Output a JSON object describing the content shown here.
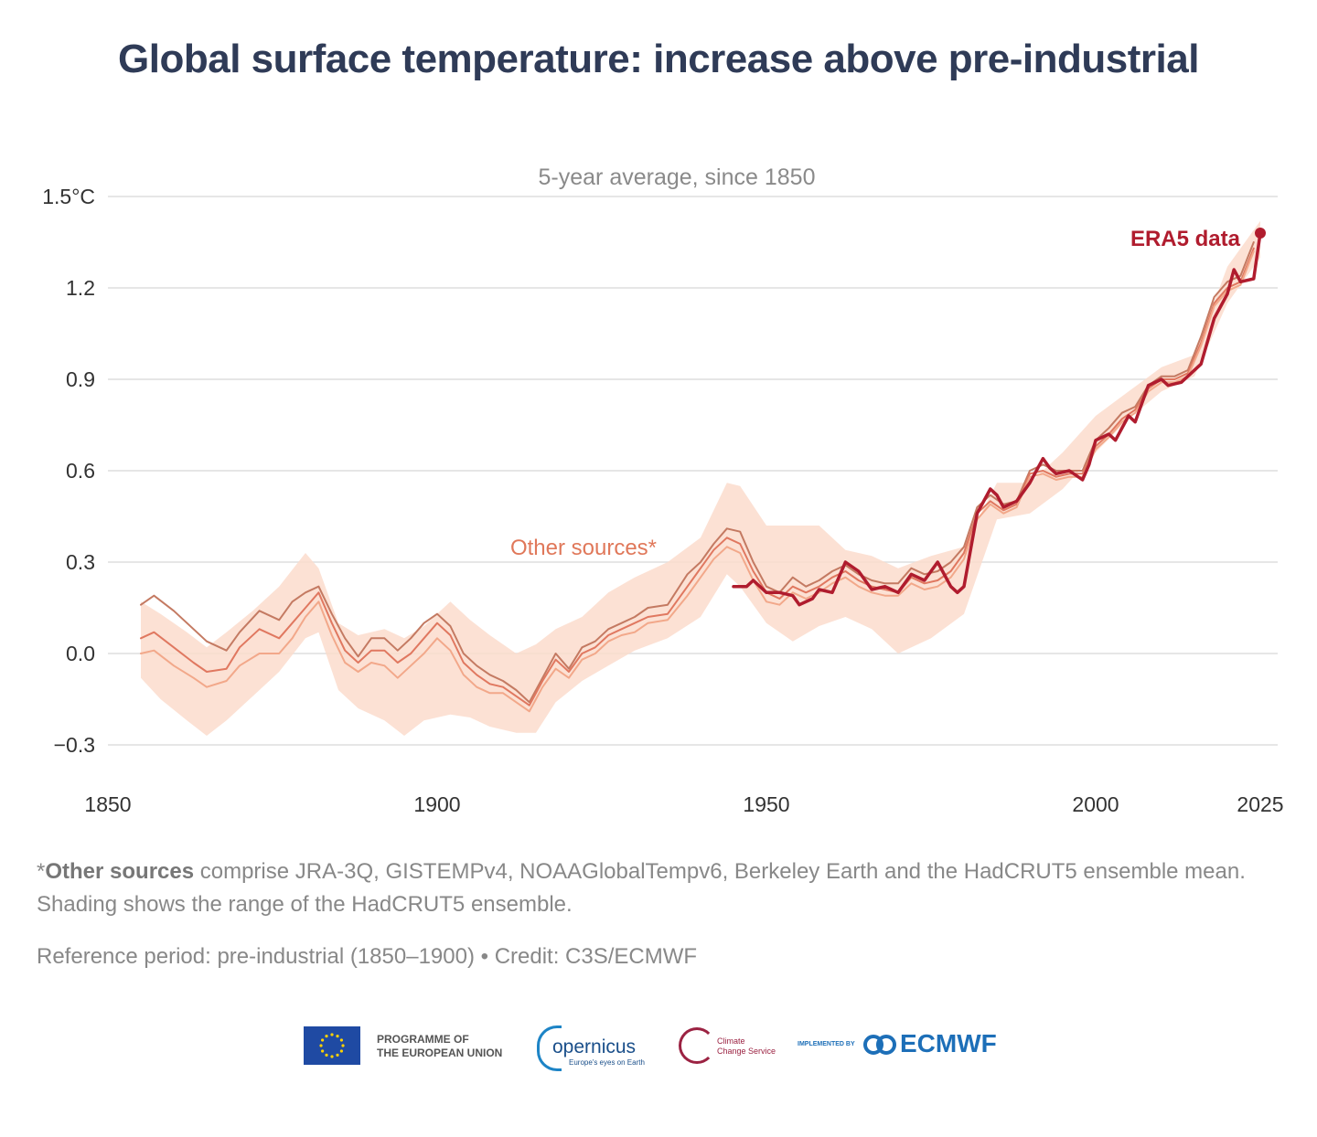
{
  "title": "Global surface temperature: increase above pre-industrial",
  "chart_data": {
    "type": "line",
    "subtitle": "5-year average, since 1850",
    "x_ticks": [
      "1850",
      "1900",
      "1950",
      "2000",
      "2025"
    ],
    "y_ticks": [
      "1.5°C",
      "1.2",
      "0.9",
      "0.6",
      "0.3",
      "0.0",
      "−0.3"
    ],
    "xlim": [
      1850,
      2027
    ],
    "ylim": [
      -0.38,
      1.55
    ],
    "grid": true,
    "colors": {
      "era5": "#b01c2e",
      "other_1": "#c47a62",
      "other_2": "#e07860",
      "other_3": "#f2a88a",
      "band": "#fbdccd",
      "label_other": "#e0785a"
    },
    "annotations": {
      "era5_label": "ERA5 data",
      "other_label": "Other sources*"
    },
    "band": {
      "x": [
        1855,
        1858,
        1862,
        1865,
        1868,
        1872,
        1876,
        1880,
        1882,
        1885,
        1888,
        1892,
        1895,
        1898,
        1902,
        1905,
        1908,
        1912,
        1915,
        1918,
        1922,
        1926,
        1930,
        1935,
        1940,
        1944,
        1946,
        1950,
        1954,
        1958,
        1962,
        1966,
        1970,
        1975,
        1980,
        1985,
        1990,
        1995,
        2000,
        2005,
        2010,
        2015,
        2020,
        2025
      ],
      "low": [
        -0.08,
        -0.15,
        -0.22,
        -0.27,
        -0.22,
        -0.14,
        -0.06,
        0.05,
        0.07,
        -0.12,
        -0.18,
        -0.22,
        -0.27,
        -0.22,
        -0.2,
        -0.21,
        -0.24,
        -0.26,
        -0.26,
        -0.16,
        -0.09,
        -0.04,
        0.01,
        0.05,
        0.12,
        0.26,
        0.22,
        0.1,
        0.04,
        0.09,
        0.12,
        0.08,
        0.0,
        0.05,
        0.13,
        0.44,
        0.46,
        0.54,
        0.66,
        0.77,
        0.86,
        0.91,
        1.15,
        1.3
      ],
      "high": [
        0.17,
        0.13,
        0.07,
        0.02,
        0.07,
        0.14,
        0.22,
        0.33,
        0.28,
        0.1,
        0.06,
        0.08,
        0.05,
        0.09,
        0.17,
        0.11,
        0.06,
        0.0,
        0.03,
        0.08,
        0.12,
        0.2,
        0.25,
        0.3,
        0.38,
        0.56,
        0.55,
        0.42,
        0.42,
        0.42,
        0.34,
        0.32,
        0.28,
        0.32,
        0.35,
        0.56,
        0.56,
        0.66,
        0.78,
        0.86,
        0.94,
        0.98,
        1.27,
        1.42
      ]
    },
    "series": [
      {
        "x": [
          1855,
          1857,
          1860,
          1863,
          1865,
          1868,
          1870,
          1873,
          1876,
          1878,
          1880,
          1882,
          1884,
          1886,
          1888,
          1890,
          1892,
          1894,
          1896,
          1898,
          1900,
          1902,
          1904,
          1906,
          1908,
          1910,
          1912,
          1914,
          1916,
          1918,
          1920,
          1922,
          1924,
          1926,
          1928,
          1930,
          1932,
          1935,
          1938,
          1940,
          1942,
          1944,
          1946,
          1948,
          1950,
          1952,
          1954,
          1956,
          1958,
          1960,
          1962,
          1964,
          1966,
          1968,
          1970,
          1972,
          1974,
          1976,
          1978,
          1980,
          1982,
          1984,
          1986,
          1988,
          1990,
          1992,
          1994,
          1996,
          1998,
          2000,
          2002,
          2004,
          2006,
          2008,
          2010,
          2012,
          2014,
          2016,
          2018,
          2020,
          2022,
          2024
        ],
        "values": [
          0.16,
          0.19,
          0.14,
          0.08,
          0.04,
          0.01,
          0.07,
          0.14,
          0.11,
          0.17,
          0.2,
          0.22,
          0.13,
          0.05,
          -0.01,
          0.05,
          0.05,
          0.01,
          0.05,
          0.1,
          0.13,
          0.09,
          0.0,
          -0.04,
          -0.07,
          -0.09,
          -0.12,
          -0.16,
          -0.08,
          0.0,
          -0.05,
          0.02,
          0.04,
          0.08,
          0.1,
          0.12,
          0.15,
          0.16,
          0.26,
          0.3,
          0.36,
          0.41,
          0.4,
          0.3,
          0.22,
          0.2,
          0.25,
          0.22,
          0.24,
          0.27,
          0.29,
          0.26,
          0.24,
          0.23,
          0.23,
          0.28,
          0.26,
          0.27,
          0.3,
          0.35,
          0.48,
          0.52,
          0.49,
          0.5,
          0.6,
          0.62,
          0.6,
          0.6,
          0.6,
          0.7,
          0.74,
          0.79,
          0.81,
          0.88,
          0.91,
          0.91,
          0.93,
          1.04,
          1.17,
          1.22,
          1.24,
          1.35
        ]
      },
      {
        "x": [
          1855,
          1857,
          1860,
          1863,
          1865,
          1868,
          1870,
          1873,
          1876,
          1878,
          1880,
          1882,
          1884,
          1886,
          1888,
          1890,
          1892,
          1894,
          1896,
          1898,
          1900,
          1902,
          1904,
          1906,
          1908,
          1910,
          1912,
          1914,
          1916,
          1918,
          1920,
          1922,
          1924,
          1926,
          1928,
          1930,
          1932,
          1935,
          1938,
          1940,
          1942,
          1944,
          1946,
          1948,
          1950,
          1952,
          1954,
          1956,
          1958,
          1960,
          1962,
          1964,
          1966,
          1968,
          1970,
          1972,
          1974,
          1976,
          1978,
          1980,
          1982,
          1984,
          1986,
          1988,
          1990,
          1992,
          1994,
          1996,
          1998,
          2000,
          2002,
          2004,
          2006,
          2008,
          2010,
          2012,
          2014,
          2016,
          2018,
          2020,
          2022,
          2024
        ],
        "values": [
          0.05,
          0.07,
          0.02,
          -0.03,
          -0.06,
          -0.05,
          0.02,
          0.08,
          0.05,
          0.1,
          0.15,
          0.2,
          0.1,
          0.01,
          -0.03,
          0.01,
          0.01,
          -0.03,
          0.0,
          0.05,
          0.1,
          0.06,
          -0.03,
          -0.07,
          -0.1,
          -0.11,
          -0.14,
          -0.17,
          -0.09,
          -0.02,
          -0.06,
          0.0,
          0.02,
          0.06,
          0.08,
          0.1,
          0.12,
          0.13,
          0.22,
          0.28,
          0.34,
          0.38,
          0.36,
          0.27,
          0.2,
          0.18,
          0.22,
          0.2,
          0.22,
          0.25,
          0.27,
          0.24,
          0.22,
          0.21,
          0.2,
          0.25,
          0.23,
          0.24,
          0.27,
          0.33,
          0.46,
          0.5,
          0.47,
          0.49,
          0.59,
          0.6,
          0.58,
          0.59,
          0.59,
          0.68,
          0.72,
          0.77,
          0.8,
          0.87,
          0.9,
          0.9,
          0.92,
          1.02,
          1.15,
          1.2,
          1.22,
          1.33
        ]
      },
      {
        "x": [
          1855,
          1857,
          1860,
          1863,
          1865,
          1868,
          1870,
          1873,
          1876,
          1878,
          1880,
          1882,
          1884,
          1886,
          1888,
          1890,
          1892,
          1894,
          1896,
          1898,
          1900,
          1902,
          1904,
          1906,
          1908,
          1910,
          1912,
          1914,
          1916,
          1918,
          1920,
          1922,
          1924,
          1926,
          1928,
          1930,
          1932,
          1935,
          1938,
          1940,
          1942,
          1944,
          1946,
          1948,
          1950,
          1952,
          1954,
          1956,
          1958,
          1960,
          1962,
          1964,
          1966,
          1968,
          1970,
          1972,
          1974,
          1976,
          1978,
          1980,
          1982,
          1984,
          1986,
          1988,
          1990,
          1992,
          1994,
          1996,
          1998,
          2000,
          2002,
          2004,
          2006,
          2008,
          2010,
          2012,
          2014,
          2016,
          2018,
          2020,
          2022,
          2024
        ],
        "values": [
          0.0,
          0.01,
          -0.04,
          -0.08,
          -0.11,
          -0.09,
          -0.04,
          0.0,
          0.0,
          0.05,
          0.12,
          0.17,
          0.06,
          -0.03,
          -0.06,
          -0.03,
          -0.04,
          -0.08,
          -0.04,
          0.0,
          0.05,
          0.01,
          -0.07,
          -0.11,
          -0.13,
          -0.13,
          -0.16,
          -0.19,
          -0.11,
          -0.05,
          -0.08,
          -0.02,
          0.0,
          0.04,
          0.06,
          0.07,
          0.1,
          0.11,
          0.19,
          0.25,
          0.31,
          0.35,
          0.33,
          0.24,
          0.17,
          0.16,
          0.2,
          0.18,
          0.2,
          0.23,
          0.25,
          0.22,
          0.2,
          0.19,
          0.19,
          0.23,
          0.21,
          0.22,
          0.25,
          0.31,
          0.44,
          0.49,
          0.46,
          0.48,
          0.58,
          0.59,
          0.57,
          0.58,
          0.58,
          0.67,
          0.71,
          0.76,
          0.79,
          0.86,
          0.89,
          0.89,
          0.91,
          1.01,
          1.14,
          1.19,
          1.21,
          1.32
        ]
      },
      {
        "x": [
          1945,
          1947,
          1948,
          1950,
          1952,
          1954,
          1955,
          1957,
          1958,
          1960,
          1962,
          1964,
          1966,
          1968,
          1970,
          1972,
          1974,
          1976,
          1978,
          1979,
          1980,
          1982,
          1984,
          1985,
          1986,
          1988,
          1990,
          1992,
          1993,
          1994,
          1996,
          1998,
          1999,
          2000,
          2002,
          2003,
          2005,
          2006,
          2008,
          2010,
          2011,
          2013,
          2014,
          2016,
          2018,
          2019,
          2020,
          2021,
          2022,
          2024,
          2025
        ],
        "values": [
          0.22,
          0.22,
          0.24,
          0.2,
          0.2,
          0.19,
          0.16,
          0.18,
          0.21,
          0.2,
          0.3,
          0.27,
          0.21,
          0.22,
          0.2,
          0.26,
          0.24,
          0.3,
          0.22,
          0.2,
          0.22,
          0.46,
          0.54,
          0.52,
          0.48,
          0.5,
          0.56,
          0.64,
          0.61,
          0.59,
          0.6,
          0.57,
          0.62,
          0.7,
          0.72,
          0.7,
          0.78,
          0.76,
          0.88,
          0.9,
          0.88,
          0.89,
          0.91,
          0.95,
          1.1,
          1.14,
          1.18,
          1.26,
          1.22,
          1.23,
          1.38
        ]
      }
    ]
  },
  "footnote": {
    "asterisk": "*",
    "bold": "Other sources",
    "rest": " comprise JRA-3Q, GISTEMPv4, NOAAGlobalTempv6, Berkeley Earth and the HadCRUT5 ensemble mean. Shading shows the range of the HadCRUT5 ensemble."
  },
  "reference": "Reference period: pre-industrial (1850–1900) • Credit: C3S/ECMWF",
  "logos": {
    "eu_line1": "PROGRAMME OF",
    "eu_line2": "THE EUROPEAN UNION",
    "copernicus": "opernicus",
    "copernicus_tagline": "Europe's eyes on Earth",
    "c3s_line1": "Climate",
    "c3s_line2": "Change Service",
    "implemented_by": "IMPLEMENTED BY",
    "ecmwf": "ECMWF"
  }
}
